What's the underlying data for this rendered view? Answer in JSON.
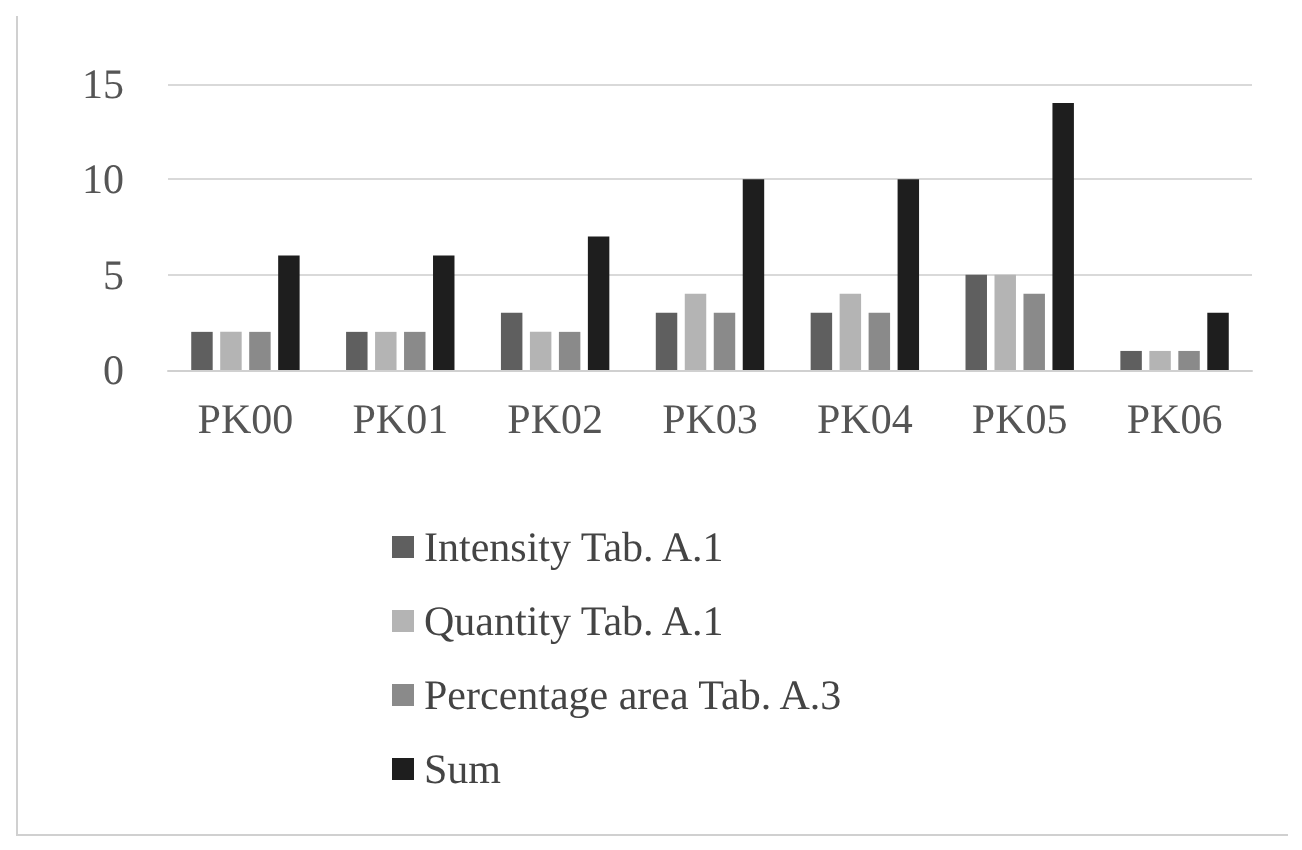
{
  "chart_data": {
    "type": "bar",
    "categories": [
      "PK00",
      "PK01",
      "PK02",
      "PK03",
      "PK04",
      "PK05",
      "PK06"
    ],
    "series": [
      {
        "name": "Intensity Tab. A.1",
        "color": "#5f5f5f",
        "values": [
          2,
          2,
          3,
          3,
          3,
          5,
          1
        ]
      },
      {
        "name": "Quantity Tab. A.1",
        "color": "#b4b4b4",
        "values": [
          2,
          2,
          2,
          4,
          4,
          5,
          1
        ]
      },
      {
        "name": "Percentage area Tab. A.3",
        "color": "#8a8a8a",
        "values": [
          2,
          2,
          2,
          3,
          3,
          4,
          1
        ]
      },
      {
        "name": "Sum",
        "color": "#1e1e1e",
        "values": [
          6,
          6,
          7,
          10,
          10,
          14,
          3
        ]
      }
    ],
    "ylim": [
      0,
      15
    ],
    "yticks": [
      0,
      5,
      10,
      15
    ],
    "grid": "y",
    "legend": "bottom"
  }
}
